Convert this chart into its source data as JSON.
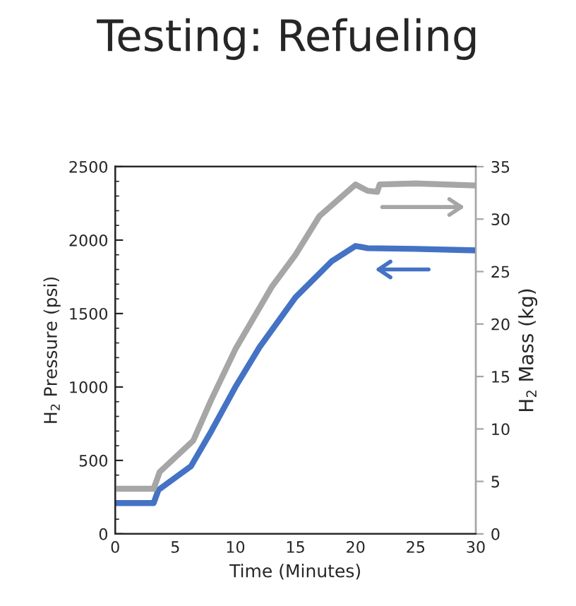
{
  "chart_data": {
    "type": "line",
    "title": "Testing: Refueling",
    "xlabel": "Time (Minutes)",
    "ylabel": "H$_{2}$ Pressure (psi)",
    "y2label": "H$_{2}$ Mass (kg)",
    "xlim": [
      0,
      30
    ],
    "xticks": [
      0,
      5,
      10,
      15,
      20,
      25,
      30
    ],
    "ylim": [
      0,
      2500
    ],
    "yticks": [
      0,
      500,
      1000,
      1500,
      2000,
      2500
    ],
    "y2lim": [
      0,
      35
    ],
    "y2ticks": [
      0,
      5,
      10,
      15,
      20,
      25,
      30,
      35
    ],
    "grid": false,
    "legend": false,
    "line_style": "solid",
    "marker": "none",
    "series": [
      {
        "color": "#4472c4",
        "x": [
          0,
          3.2,
          3.6,
          6.3,
          8,
          10,
          12,
          15,
          18,
          20,
          21,
          25,
          30
        ],
        "values": [
          210,
          210,
          300,
          460,
          700,
          1000,
          1270,
          1610,
          1855,
          1960,
          1945,
          1940,
          1930
        ]
      },
      {
        "color": "#a6a6a6",
        "axis": "y2",
        "x": [
          0,
          3.2,
          3.7,
          6.5,
          8,
          10,
          13,
          15,
          17,
          20,
          21,
          21.8,
          22,
          25,
          30
        ],
        "values": [
          4.3,
          4.3,
          5.9,
          8.9,
          12.8,
          17.6,
          23.5,
          26.6,
          30.3,
          33.3,
          32.7,
          32.6,
          33.3,
          33.4,
          33.2
        ]
      }
    ]
  }
}
